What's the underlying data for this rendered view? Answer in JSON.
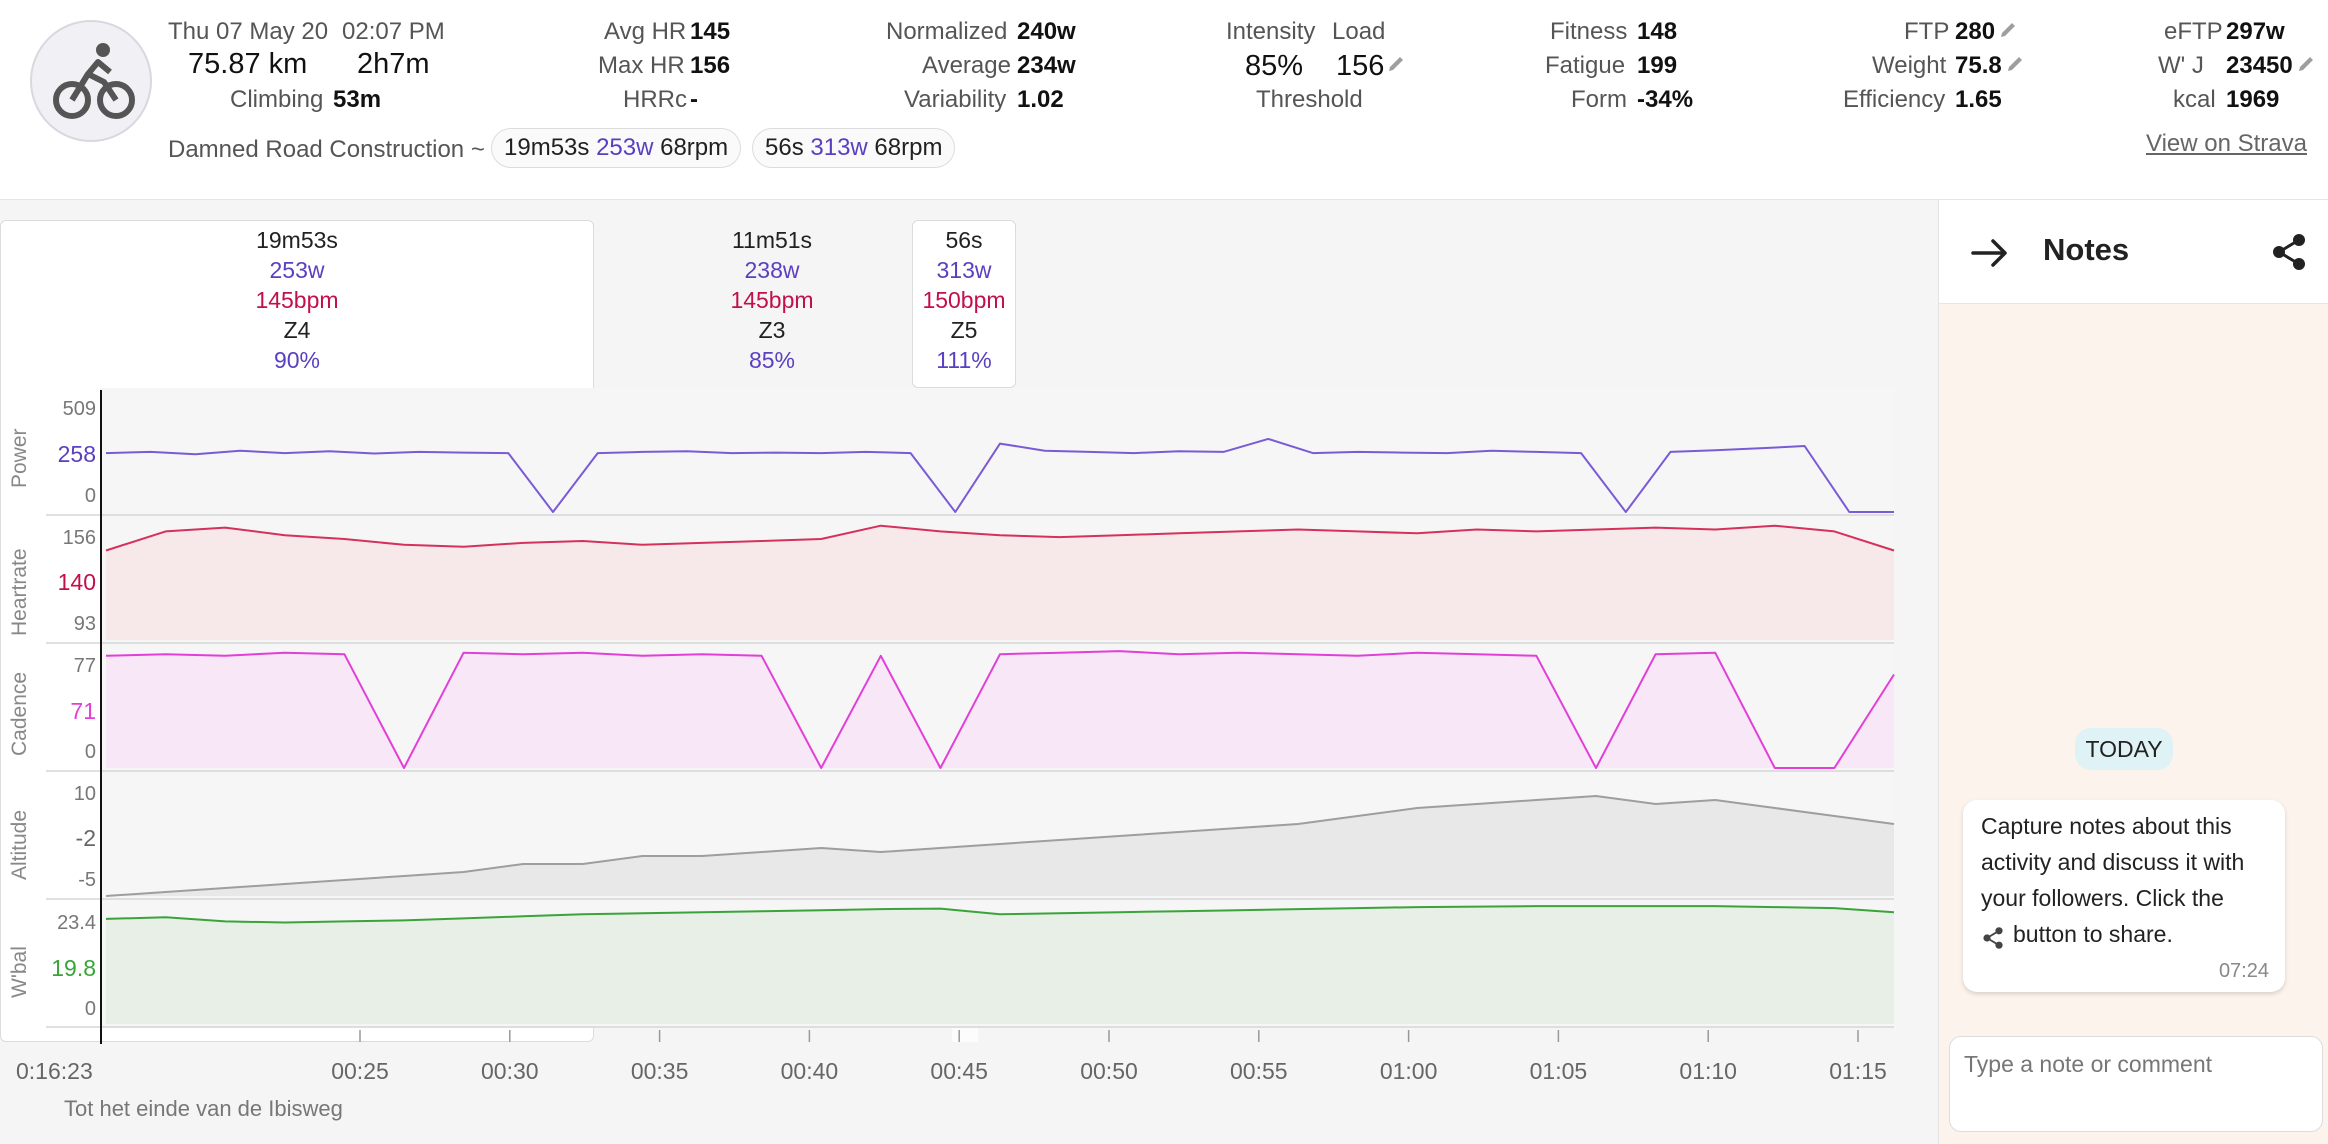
{
  "activity": {
    "date_time": "Thu 07 May 20",
    "time": "02:07 PM",
    "distance": "75.87 km",
    "duration": "2h7m",
    "climbing_label": "Climbing",
    "climbing_value": "53m",
    "name": "Damned Road Construction ~",
    "view_on_strava": "View on Strava",
    "icon": "bike-icon"
  },
  "stats": {
    "avg_hr_label": "Avg HR",
    "avg_hr": "145",
    "max_hr_label": "Max HR",
    "max_hr": "156",
    "hrrc_label": "HRRc",
    "hrrc": "-",
    "normalized_label": "Normalized",
    "normalized": "240w",
    "average_label": "Average",
    "average": "234w",
    "variability_label": "Variability",
    "variability": "1.02",
    "intensity_label": "Intensity",
    "intensity": "85%",
    "load_label": "Load",
    "load": "156",
    "threshold_label": "Threshold",
    "fitness_label": "Fitness",
    "fitness": "148",
    "fatigue_label": "Fatigue",
    "fatigue": "199",
    "form_label": "Form",
    "form": "-34%",
    "ftp_label": "FTP",
    "ftp": "280",
    "weight_label": "Weight",
    "weight": "75.8",
    "efficiency_label": "Efficiency",
    "efficiency": "1.65",
    "eftp_label": "eFTP",
    "eftp": "297w",
    "wj_label": "W' J",
    "wj": "23450",
    "kcal_label": "kcal",
    "kcal": "1969"
  },
  "chips": [
    {
      "duration": "19m53s",
      "power": "253w",
      "cadence": "68rpm"
    },
    {
      "duration": "56s",
      "power": "313w",
      "cadence": "68rpm"
    }
  ],
  "intervals": [
    {
      "duration": "19m53s",
      "power": "253w",
      "hr": "145bpm",
      "zone": "Z4",
      "pct": "90%"
    },
    {
      "duration": "11m51s",
      "power": "238w",
      "hr": "145bpm",
      "zone": "Z3",
      "pct": "85%"
    },
    {
      "duration": "56s",
      "power": "313w",
      "hr": "150bpm",
      "zone": "Z5",
      "pct": "111%"
    }
  ],
  "chart_data": [
    {
      "type": "line",
      "title": "Power",
      "ylim": [
        0,
        509
      ],
      "ticks": [
        "509",
        "258",
        "0"
      ],
      "color": "#7b5ad6",
      "values": [
        250,
        255,
        245,
        260,
        250,
        258,
        248,
        255,
        252,
        250,
        0,
        250,
        255,
        258,
        250,
        252,
        250,
        255,
        250,
        0,
        290,
        260,
        255,
        250,
        258,
        255,
        310,
        250,
        255,
        252,
        250,
        260,
        255,
        250,
        0,
        255,
        262,
        270,
        280,
        0,
        0
      ]
    },
    {
      "type": "area",
      "title": "Heartrate",
      "ylim": [
        93,
        156
      ],
      "ticks": [
        "156",
        "140",
        "93"
      ],
      "color": "#d4315b",
      "values": [
        140,
        150,
        152,
        148,
        146,
        143,
        142,
        144,
        145,
        143,
        144,
        145,
        146,
        153,
        150,
        148,
        147,
        148,
        149,
        150,
        151,
        150,
        149,
        151,
        150,
        151,
        152,
        151,
        153,
        150,
        140
      ]
    },
    {
      "type": "area",
      "title": "Cadence",
      "ylim": [
        0,
        77
      ],
      "ticks": [
        "77",
        "71",
        "0"
      ],
      "color": "#e23fd9",
      "values": [
        72,
        73,
        72,
        74,
        73,
        0,
        74,
        73,
        74,
        72,
        73,
        72,
        0,
        72,
        0,
        73,
        74,
        75,
        73,
        74,
        73,
        72,
        74,
        73,
        72,
        0,
        73,
        74,
        0,
        0,
        60
      ]
    },
    {
      "type": "area",
      "title": "Altitude",
      "ylim": [
        -5,
        10
      ],
      "ticks": [
        "10",
        "-2",
        "-5"
      ],
      "color": "#9e9e9e",
      "values": [
        -5,
        -4.5,
        -4,
        -3.5,
        -3,
        -2.5,
        -2,
        -1,
        -1,
        0,
        0,
        0.5,
        1,
        0.5,
        1,
        1.5,
        2,
        2.5,
        3,
        3.5,
        4,
        5,
        6,
        6.5,
        7,
        7.5,
        6.5,
        7,
        6,
        5,
        4
      ]
    },
    {
      "type": "area",
      "title": "W'bal",
      "ylim": [
        0,
        23.4
      ],
      "ticks": [
        "23.4",
        "19.8",
        "0"
      ],
      "color": "#3aa33a",
      "values": [
        20.5,
        20.8,
        20.0,
        19.8,
        20.0,
        20.2,
        20.6,
        21.0,
        21.4,
        21.6,
        21.8,
        22.0,
        22.2,
        22.4,
        22.5,
        21.4,
        21.6,
        21.8,
        22.0,
        22.2,
        22.4,
        22.6,
        22.8,
        22.9,
        23.0,
        23.0,
        23.0,
        23.0,
        22.8,
        22.6,
        21.8
      ]
    }
  ],
  "x_axis": {
    "start": "0:16:23",
    "ticks": [
      "00:25",
      "00:30",
      "00:35",
      "00:40",
      "00:45",
      "00:50",
      "00:55",
      "01:00",
      "01:05",
      "01:10",
      "01:15"
    ],
    "location": "Tot het einde van de Ibisweg"
  },
  "notes": {
    "title": "Notes",
    "today": "TODAY",
    "message_line1": "Capture notes about this",
    "message_line2": "activity and discuss it with",
    "message_line3": "your followers. Click the",
    "message_line4": "button to share.",
    "message_time": "07:24",
    "input_placeholder": "Type a note or comment"
  }
}
